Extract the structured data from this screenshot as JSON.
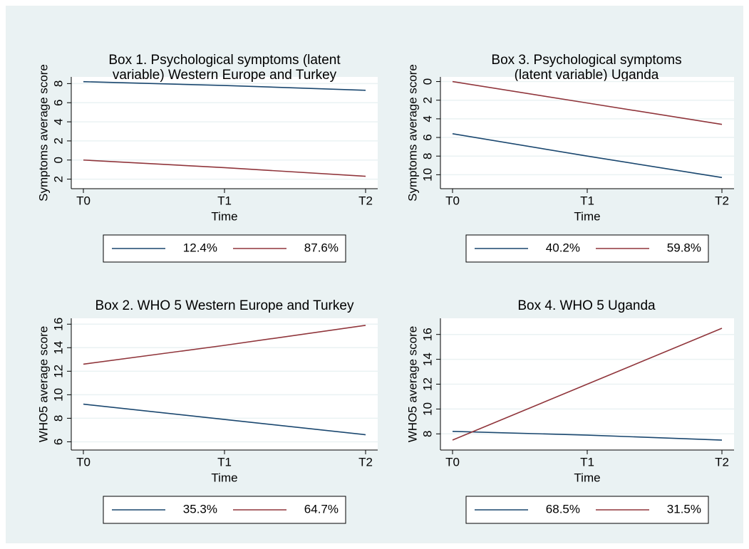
{
  "chart_data": [
    {
      "type": "line",
      "title": [
        "Box 1. Psychological symptoms (latent",
        "variable) Western Europe and Turkey"
      ],
      "x_label": "Time",
      "y_label": "Symptoms average score",
      "categories": [
        "T0",
        "T1",
        "T2"
      ],
      "series": [
        {
          "name": "12.4%",
          "color": "#1a476f",
          "values": [
            8.2,
            7.8,
            7.3
          ]
        },
        {
          "name": "87.6%",
          "color": "#90353b",
          "values": [
            0,
            -0.8,
            -1.7
          ]
        }
      ],
      "ylim": [
        -3,
        8.7
      ],
      "yticks": [
        8,
        6,
        4,
        2,
        0,
        {
          "value": -2,
          "label": "2"
        }
      ],
      "grid": true
    },
    {
      "type": "line",
      "title": [
        "Box 3. Psychological symptoms",
        "(latent variable) Uganda"
      ],
      "x_label": "Time",
      "y_label": "Symptoms average score",
      "categories": [
        "T0",
        "T1",
        "T2"
      ],
      "series": [
        {
          "name": "40.2%",
          "color": "#1a476f",
          "values": [
            5.6,
            8,
            10.3
          ]
        },
        {
          "name": "59.8%",
          "color": "#90353b",
          "values": [
            0,
            2.3,
            4.6
          ]
        }
      ],
      "ylim": [
        11.5,
        -0.5
      ],
      "yticks": [
        0,
        2,
        4,
        6,
        8,
        10
      ],
      "grid": true
    },
    {
      "type": "line",
      "title": [
        "Box 2. WHO 5 Western Europe and Turkey"
      ],
      "x_label": "Time",
      "y_label": "WHO5 average score",
      "categories": [
        "T0",
        "T1",
        "T2"
      ],
      "series": [
        {
          "name": "35.3%",
          "color": "#1a476f",
          "values": [
            9.2,
            7.9,
            6.6
          ]
        },
        {
          "name": "64.7%",
          "color": "#90353b",
          "values": [
            12.6,
            14.2,
            15.9
          ]
        }
      ],
      "ylim": [
        5.3,
        16.5
      ],
      "yticks": [
        6,
        8,
        10,
        12,
        14,
        16
      ],
      "grid": true
    },
    {
      "type": "line",
      "title": [
        "Box 4. WHO 5 Uganda"
      ],
      "x_label": "Time",
      "y_label": "WHO5 average score",
      "categories": [
        "T0",
        "T1",
        "T2"
      ],
      "series": [
        {
          "name": "68.5%",
          "color": "#1a476f",
          "values": [
            8.2,
            7.9,
            7.5
          ]
        },
        {
          "name": "31.5%",
          "color": "#90353b",
          "values": [
            7.5,
            12,
            16.5
          ]
        }
      ],
      "ylim": [
        6.7,
        17.3
      ],
      "yticks": [
        8,
        10,
        12,
        14,
        16
      ],
      "grid": true
    }
  ]
}
